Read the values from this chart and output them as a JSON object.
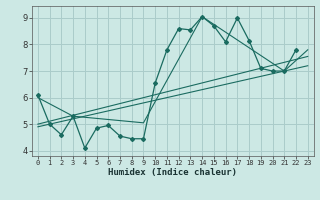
{
  "xlabel": "Humidex (Indice chaleur)",
  "bg_color": "#cce8e4",
  "grid_color": "#aaccca",
  "line_color": "#1a6b60",
  "xlim": [
    -0.5,
    23.5
  ],
  "ylim": [
    3.8,
    9.45
  ],
  "xticks": [
    0,
    1,
    2,
    3,
    4,
    5,
    6,
    7,
    8,
    9,
    10,
    11,
    12,
    13,
    14,
    15,
    16,
    17,
    18,
    19,
    20,
    21,
    22,
    23
  ],
  "yticks": [
    4,
    5,
    6,
    7,
    8,
    9
  ],
  "line1_x": [
    0,
    1,
    2,
    3,
    4,
    5,
    6,
    7,
    8,
    9,
    10,
    11,
    12,
    13,
    14,
    15,
    16,
    17,
    18,
    19,
    20,
    21,
    22
  ],
  "line1_y": [
    6.1,
    5.0,
    4.6,
    5.3,
    4.1,
    4.85,
    4.95,
    4.55,
    4.45,
    4.45,
    6.55,
    7.8,
    8.6,
    8.55,
    9.05,
    8.7,
    8.1,
    9.0,
    8.15,
    7.1,
    7.0,
    7.0,
    7.8
  ],
  "line2_x": [
    0,
    3,
    9,
    14,
    21,
    23
  ],
  "line2_y": [
    6.0,
    5.3,
    5.05,
    9.05,
    7.0,
    7.8
  ],
  "line3_x": [
    0,
    23
  ],
  "line3_y": [
    5.0,
    7.55
  ],
  "line4_x": [
    0,
    23
  ],
  "line4_y": [
    4.9,
    7.2
  ]
}
